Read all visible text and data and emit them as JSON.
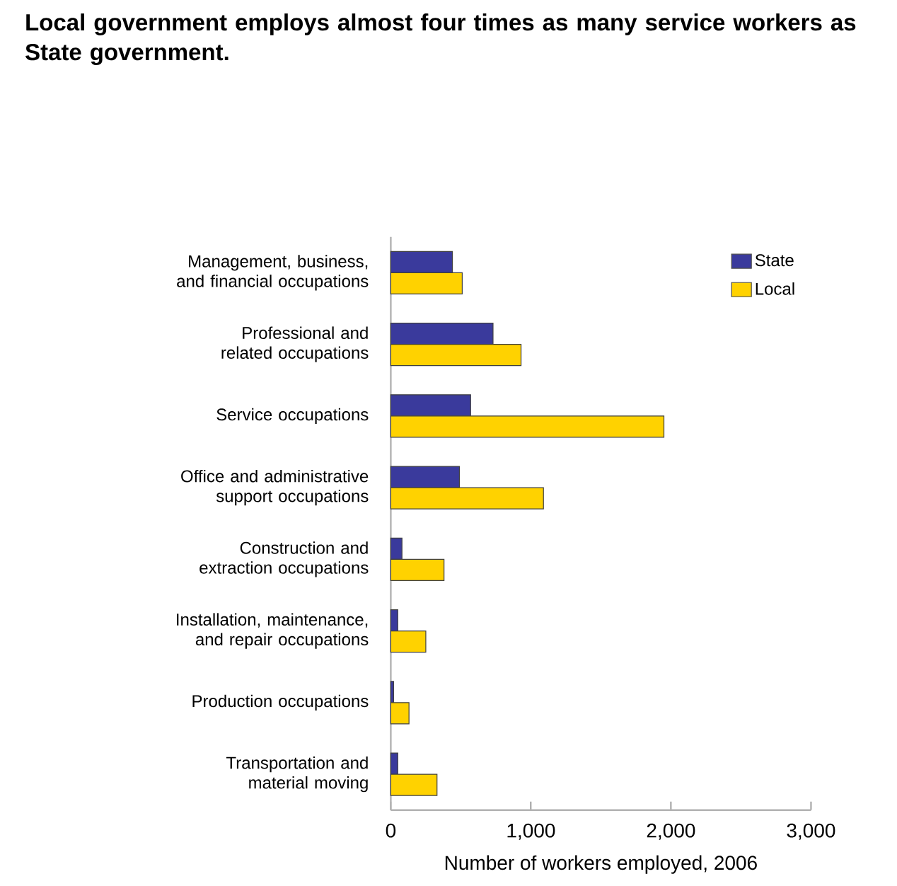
{
  "chart_data": {
    "type": "bar",
    "orientation": "horizontal",
    "title": "Local government employs almost four times as many service workers as State government.",
    "xlabel": "Number of workers employed, 2006",
    "categories": [
      "Management, business, and financial occupations",
      "Professional and related occupations",
      "Service occupations",
      "Office and administrative support occupations",
      "Construction and extraction occupations",
      "Installation, maintenance, and repair occupations",
      "Production occupations",
      "Transportation and material moving"
    ],
    "series": [
      {
        "name": "State",
        "color": "#3a3a9c",
        "values": [
          440,
          730,
          570,
          490,
          80,
          50,
          20,
          50
        ]
      },
      {
        "name": "Local",
        "color": "#ffd200",
        "values": [
          510,
          930,
          1950,
          1090,
          380,
          250,
          130,
          330
        ]
      }
    ],
    "xlim": [
      0,
      3000
    ],
    "xticks": [
      0,
      {
        "value": 1000,
        "label": "1,000"
      },
      {
        "value": 2000,
        "label": "2,000"
      },
      {
        "value": 3000,
        "label": "3,000"
      }
    ],
    "legend": "top right",
    "grid": false
  }
}
